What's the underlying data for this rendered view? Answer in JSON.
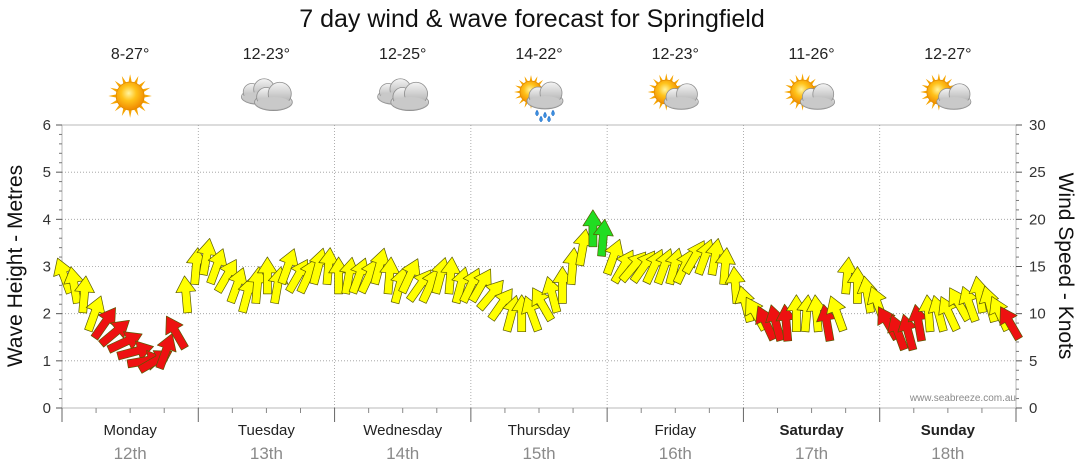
{
  "chart_data": {
    "type": "scatter",
    "title": "7 day wind & wave forecast for Springfield",
    "ylabel_left": "Wave Height - Metres",
    "ylabel_right": "Wind Speed - Knots",
    "ylim_left": [
      0,
      6
    ],
    "ylim_right": [
      0,
      30
    ],
    "yticks_left": [
      "0",
      "1",
      "2",
      "3",
      "4",
      "5",
      "6"
    ],
    "yticks_right": [
      "0",
      "5",
      "10",
      "15",
      "20",
      "25",
      "30"
    ],
    "grid": true,
    "credit": "www.seabreeze.com.au",
    "days": [
      {
        "name": "Monday",
        "date": "12th",
        "temp": "8-27°",
        "icon": "sunny-icon",
        "bold": false
      },
      {
        "name": "Tuesday",
        "date": "13th",
        "temp": "12-23°",
        "icon": "cloudy-icon",
        "bold": false
      },
      {
        "name": "Wednesday",
        "date": "14th",
        "temp": "12-25°",
        "icon": "cloudy-icon",
        "bold": false
      },
      {
        "name": "Thursday",
        "date": "15th",
        "temp": "14-22°",
        "icon": "showers-icon",
        "bold": false
      },
      {
        "name": "Friday",
        "date": "16th",
        "temp": "12-23°",
        "icon": "partly-cloudy-icon",
        "bold": false
      },
      {
        "name": "Saturday",
        "date": "17th",
        "temp": "11-26°",
        "icon": "partly-cloudy-icon",
        "bold": true
      },
      {
        "name": "Sunday",
        "date": "18th",
        "temp": "12-27°",
        "icon": "partly-cloudy-icon",
        "bold": true
      }
    ],
    "wind_series": {
      "name": "Wind Speed - Knots",
      "x_unit": "days from Monday 00:00",
      "speed_knots": [
        14,
        13,
        12,
        10,
        9,
        8,
        7,
        6,
        5,
        5,
        6,
        8,
        12,
        15,
        16,
        15,
        14,
        13,
        12,
        13,
        14,
        13,
        15,
        14,
        14,
        15,
        15,
        14,
        14,
        14,
        14,
        15,
        14,
        13,
        14,
        13,
        13,
        14,
        14,
        13,
        13,
        13,
        12,
        11,
        10,
        10,
        10,
        11,
        12,
        13,
        15,
        17,
        19,
        18,
        16,
        15,
        15,
        15,
        15,
        15,
        15,
        15,
        16,
        16,
        16,
        15,
        13,
        11,
        10,
        9,
        9,
        9,
        10,
        10,
        10,
        9,
        10,
        14,
        13,
        12,
        11,
        9,
        8,
        8,
        9,
        10,
        10,
        10,
        11,
        11,
        12,
        11,
        10,
        9
      ],
      "direction_deg": [
        160,
        170,
        185,
        200,
        215,
        230,
        245,
        255,
        260,
        240,
        200,
        150,
        175,
        185,
        190,
        200,
        210,
        200,
        195,
        185,
        180,
        190,
        200,
        210,
        205,
        195,
        185,
        180,
        190,
        200,
        205,
        195,
        185,
        195,
        205,
        215,
        205,
        195,
        185,
        195,
        205,
        210,
        220,
        215,
        195,
        180,
        160,
        150,
        165,
        180,
        185,
        190,
        180,
        185,
        200,
        210,
        220,
        215,
        205,
        200,
        195,
        205,
        210,
        200,
        190,
        185,
        175,
        165,
        150,
        155,
        165,
        175,
        180,
        185,
        175,
        170,
        160,
        185,
        180,
        170,
        160,
        150,
        160,
        165,
        170,
        175,
        165,
        155,
        150,
        160,
        170,
        165,
        155,
        150
      ],
      "color_thresholds_knots": {
        "red_below": 10,
        "yellow_below": 18,
        "green_from": 18
      },
      "colors": {
        "red": "#ee1111",
        "yellow": "#ffff00",
        "green": "#22dd22"
      }
    }
  }
}
